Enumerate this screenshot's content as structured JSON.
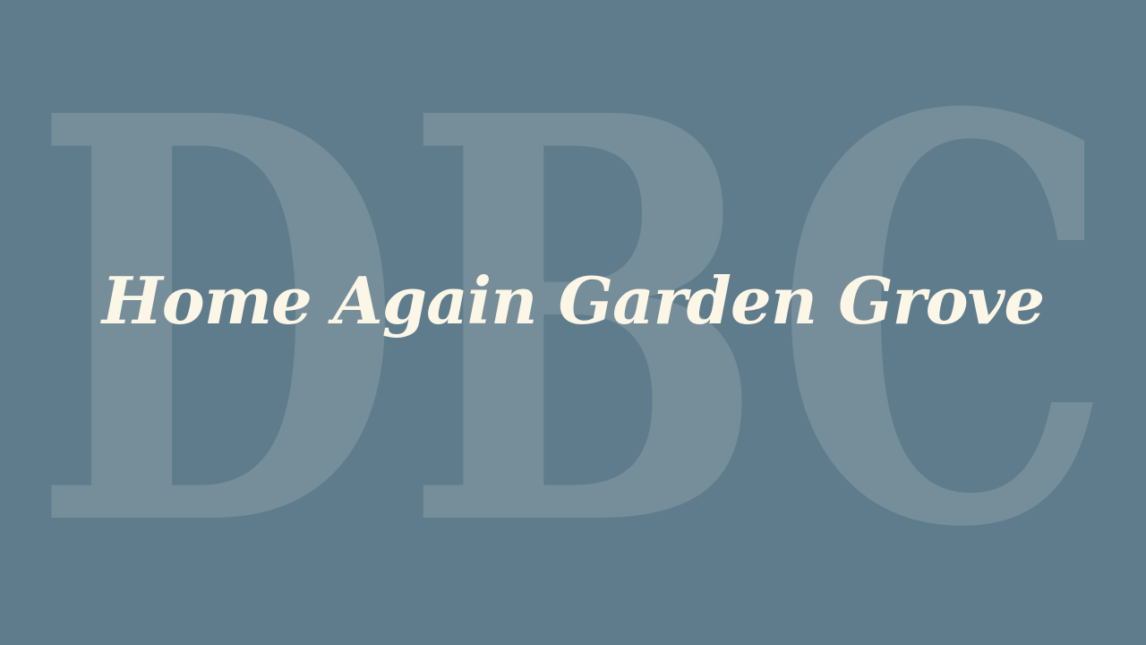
{
  "watermark": {
    "text": "DBC"
  },
  "title": {
    "text": "Home Again Garden Grove"
  },
  "colors": {
    "background": "#5f7c8c",
    "watermark": "#768d9a",
    "title": "#fbf6e6"
  }
}
